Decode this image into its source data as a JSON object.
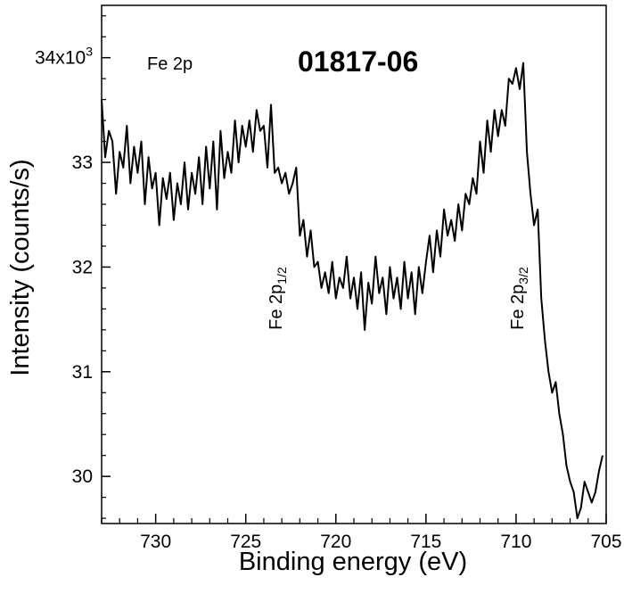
{
  "chart_data": {
    "type": "line",
    "title": "01817-06",
    "region_label": "Fe 2p",
    "xlabel": "Binding energy (eV)",
    "ylabel": "Intensity (counts/s)",
    "xlim": [
      733,
      705
    ],
    "ylim": [
      29.55,
      34.5
    ],
    "x_ticks": [
      730,
      725,
      720,
      715,
      710,
      705
    ],
    "x_tick_labels": [
      "730",
      "725",
      "720",
      "715",
      "710",
      "705"
    ],
    "y_ticks": [
      30,
      31,
      32,
      33,
      34
    ],
    "y_tick_labels": [
      "30",
      "31",
      "32",
      "33",
      "34x10"
    ],
    "y_tick_exponent": "3",
    "grid": false,
    "annotations": [
      {
        "base": "Fe 2p",
        "sub": "1/2",
        "x": 723.0,
        "y": 31.4
      },
      {
        "base": "Fe 2p",
        "sub": "3/2",
        "x": 709.6,
        "y": 31.4
      }
    ],
    "series": [
      {
        "color": "#000000",
        "x": [
          733.0,
          732.8,
          732.6,
          732.4,
          732.2,
          732.0,
          731.8,
          731.6,
          731.4,
          731.2,
          731.0,
          730.8,
          730.6,
          730.4,
          730.2,
          730.0,
          729.8,
          729.6,
          729.4,
          729.2,
          729.0,
          728.8,
          728.6,
          728.4,
          728.2,
          728.0,
          727.8,
          727.6,
          727.4,
          727.2,
          727.0,
          726.8,
          726.6,
          726.4,
          726.2,
          726.0,
          725.8,
          725.6,
          725.4,
          725.2,
          725.0,
          724.8,
          724.6,
          724.4,
          724.2,
          724.0,
          723.8,
          723.6,
          723.4,
          723.2,
          723.0,
          722.8,
          722.6,
          722.4,
          722.2,
          722.0,
          721.8,
          721.6,
          721.4,
          721.2,
          721.0,
          720.8,
          720.6,
          720.4,
          720.2,
          720.0,
          719.8,
          719.6,
          719.4,
          719.2,
          719.0,
          718.8,
          718.6,
          718.4,
          718.2,
          718.0,
          717.8,
          717.6,
          717.4,
          717.2,
          717.0,
          716.8,
          716.6,
          716.4,
          716.2,
          716.0,
          715.8,
          715.6,
          715.4,
          715.2,
          715.0,
          714.8,
          714.6,
          714.4,
          714.2,
          714.0,
          713.8,
          713.6,
          713.4,
          713.2,
          713.0,
          712.8,
          712.6,
          712.4,
          712.2,
          712.0,
          711.8,
          711.6,
          711.4,
          711.2,
          711.0,
          710.8,
          710.6,
          710.4,
          710.2,
          710.0,
          709.8,
          709.6,
          709.4,
          709.2,
          709.0,
          708.8,
          708.6,
          708.4,
          708.2,
          708.0,
          707.8,
          707.6,
          707.4,
          707.2,
          707.0,
          706.8,
          706.6,
          706.4,
          706.2,
          706.0,
          705.8,
          705.6,
          705.4,
          705.2
        ],
        "y": [
          33.6,
          33.05,
          33.3,
          33.2,
          32.7,
          33.1,
          32.95,
          33.35,
          32.8,
          33.15,
          32.9,
          33.2,
          32.6,
          33.05,
          32.75,
          32.9,
          32.4,
          32.85,
          32.65,
          32.9,
          32.45,
          32.8,
          32.6,
          33.0,
          32.55,
          32.9,
          32.7,
          33.05,
          32.6,
          33.15,
          32.75,
          33.2,
          32.55,
          33.3,
          32.85,
          33.1,
          32.9,
          33.4,
          33.0,
          33.35,
          33.15,
          33.4,
          33.1,
          33.5,
          33.3,
          33.35,
          32.95,
          33.55,
          32.9,
          32.95,
          32.8,
          32.9,
          32.7,
          32.8,
          32.95,
          32.3,
          32.45,
          32.1,
          32.35,
          32.0,
          32.05,
          31.8,
          31.95,
          31.75,
          32.05,
          31.7,
          31.9,
          31.8,
          32.1,
          31.7,
          31.9,
          31.6,
          31.95,
          31.4,
          31.85,
          31.65,
          32.1,
          31.75,
          31.9,
          31.55,
          32.0,
          31.7,
          31.9,
          31.6,
          32.05,
          31.7,
          31.95,
          31.55,
          32.0,
          31.75,
          32.05,
          32.3,
          31.95,
          32.35,
          32.1,
          32.55,
          32.3,
          32.45,
          32.25,
          32.6,
          32.35,
          32.7,
          32.6,
          32.85,
          32.7,
          33.2,
          32.9,
          33.4,
          33.1,
          33.5,
          33.25,
          33.5,
          33.35,
          33.8,
          33.75,
          33.9,
          33.7,
          33.95,
          33.1,
          32.7,
          32.4,
          32.55,
          31.7,
          31.3,
          31.0,
          30.8,
          30.9,
          30.6,
          30.4,
          30.1,
          29.95,
          29.85,
          29.6,
          29.7,
          29.95,
          29.85,
          29.75,
          29.85,
          30.05,
          30.2
        ]
      }
    ]
  }
}
